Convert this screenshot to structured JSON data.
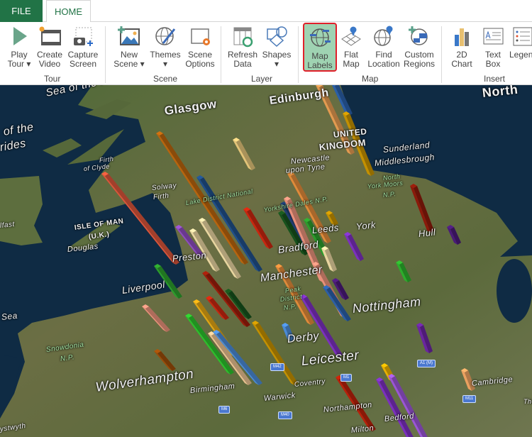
{
  "tabs": {
    "file": "FILE",
    "home": "HOME"
  },
  "ribbon": {
    "groups": {
      "tour": "Tour",
      "scene": "Scene",
      "layer": "Layer",
      "map": "Map",
      "insert": "Insert"
    },
    "buttons": {
      "play_tour": [
        "Play",
        "Tour ▾"
      ],
      "create_video": [
        "Create",
        "Video"
      ],
      "capture_screen": [
        "Capture",
        "Screen"
      ],
      "new_scene": [
        "New",
        "Scene ▾"
      ],
      "themes": [
        "Themes",
        "▾"
      ],
      "scene_options": [
        "Scene",
        "Options"
      ],
      "refresh_data": [
        "Refresh",
        "Data"
      ],
      "shapes": [
        "Shapes",
        "▾"
      ],
      "map_labels": [
        "Map",
        "Labels"
      ],
      "flat_map": [
        "Flat",
        "Map"
      ],
      "find_location": [
        "Find",
        "Location"
      ],
      "custom_regions": [
        "Custom",
        "Regions"
      ],
      "chart_2d": [
        "2D",
        "Chart"
      ],
      "text_box": [
        "Text",
        "Box"
      ],
      "legend": [
        "Legend",
        ""
      ]
    },
    "selected": "map_labels"
  },
  "map": {
    "labels": {
      "sea_hebrides": "Sea of the Hebrides",
      "sea_hebrides2a": "of the",
      "sea_hebrides2b": "rides",
      "glasgow": "Glasgow",
      "edinburgh": "Edinburgh",
      "uk1": "UNITED",
      "uk2": "KINGDOM",
      "sunderland": "Sunderland",
      "newcastle1": "Newcastle",
      "newcastle2": "upon Tyne",
      "middlesbrough": "Middlesbrough",
      "nym1": "North",
      "nym2": "York Moors",
      "nym3": "N.P.",
      "firth_clyde1": "Firth",
      "firth_clyde2": "of Clyde",
      "solway1": "Solway",
      "solway2": "Firth",
      "belfast": "lfast",
      "iom1": "ISLE OF MAN",
      "iom2": "(U.K.)",
      "douglas": "Douglas",
      "yorkshire_dales": "Yorkshire Dales N.P.",
      "lake_district": "Lake District National",
      "leeds": "Leeds",
      "york": "York",
      "hull": "Hull",
      "bradford": "Bradford",
      "preston": "Preston",
      "manchester": "Manchester",
      "peak1": "Peak",
      "peak2": "District",
      "peak3": "N.P.",
      "liverpool": "Liverpool",
      "sea": "Sea",
      "nottingham": "Nottingham",
      "derby": "Derby",
      "snowdonia1": "Snowdonia",
      "snowdonia2": "N.P.",
      "leicester": "Leicester",
      "wolverhampton": "Wolverhampton",
      "birmingham": "Birmingham",
      "coventry": "Coventry",
      "warwick": "Warwick",
      "northampton": "Northampton",
      "bedford": "Bedford",
      "milton": "Milton",
      "cambridge": "Cambridge",
      "aberystwyth": "ystwyth",
      "north_sea": "North",
      "the": "The"
    },
    "roads": {
      "m42": "M42",
      "m6": "M6",
      "m40": "M40",
      "m1": "M1",
      "a1m": "A1 (M)",
      "m11": "M11"
    },
    "colors": {
      "sea": "#0f2b44",
      "land": "#5f6b3e",
      "label": "#f2f2f2",
      "park_label": "#a5e6a5"
    },
    "bar_colors": [
      "#d9553a",
      "#b8640e",
      "#1f4f8a",
      "#e2c378",
      "#c8260f",
      "#8d4bbf",
      "#e8d5a0",
      "#e39a50",
      "#2a5fa8",
      "#c49000",
      "#e08a3a",
      "#e8907a",
      "#1f3d70",
      "#16521c",
      "#2c9c2c",
      "#7b2fbf",
      "#8b1a0a",
      "#4a1a78",
      "#2cae2c",
      "#9b1c0a",
      "#e0a514",
      "#2cc02c",
      "#e8c090",
      "#4a8ad6",
      "#9b4c08",
      "#6a25a0",
      "#e8b000",
      "#b8200a",
      "#9a55d6",
      "#eaa060"
    ]
  }
}
